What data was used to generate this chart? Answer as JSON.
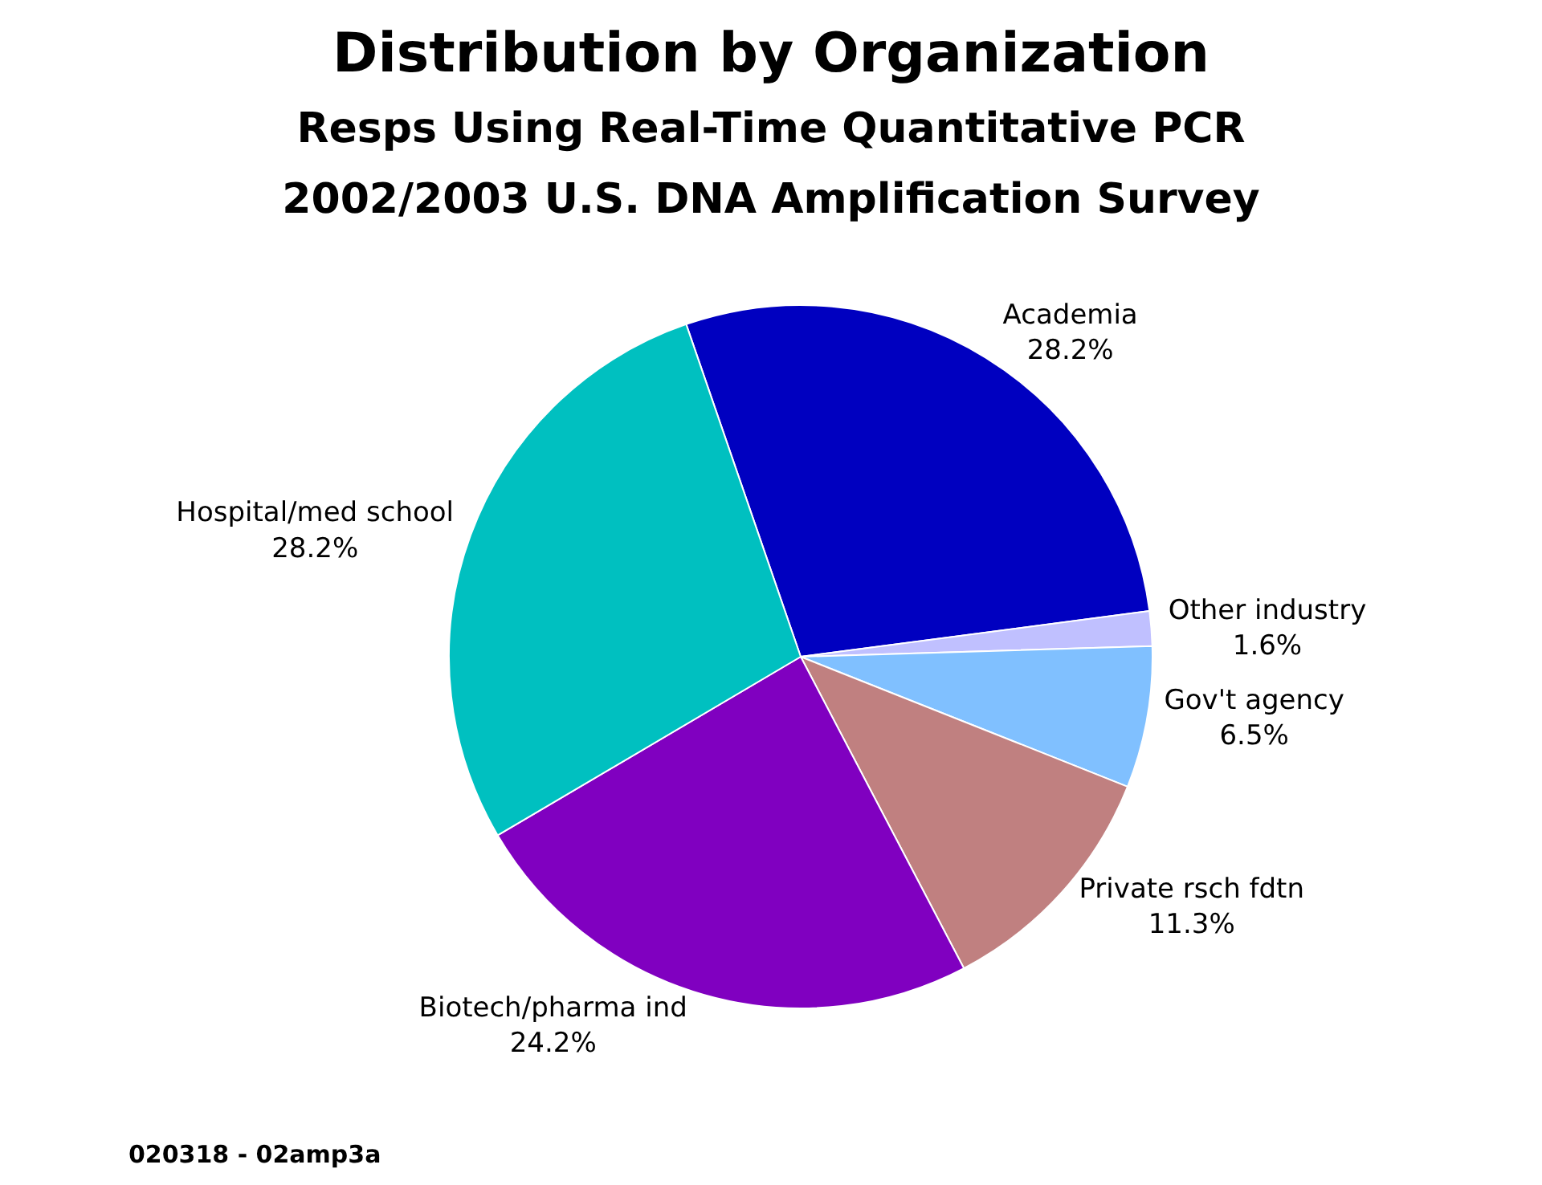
{
  "chart_data": {
    "type": "pie",
    "title": "Distribution by Organization",
    "subtitle": "Resps Using Real-Time Quantitative PCR\n2002/2003 U.S. DNA Amplification Survey",
    "categories": [
      "Academia",
      "Other industry",
      "Gov't agency",
      "Private rsch fdtn",
      "Biotech/pharma ind",
      "Hospital/med school"
    ],
    "values": [
      28.2,
      1.6,
      6.5,
      11.3,
      24.2,
      28.2
    ],
    "value_labels": [
      "28.2%",
      "1.6%",
      "6.5%",
      "11.3%",
      "24.2%",
      "28.2%"
    ],
    "colors": [
      "#0000c0",
      "#c0c0ff",
      "#80c0ff",
      "#c08080",
      "#8000c0",
      "#00c0c0"
    ],
    "legend": false,
    "annotations": [
      "020318 - 02amp3a"
    ]
  }
}
